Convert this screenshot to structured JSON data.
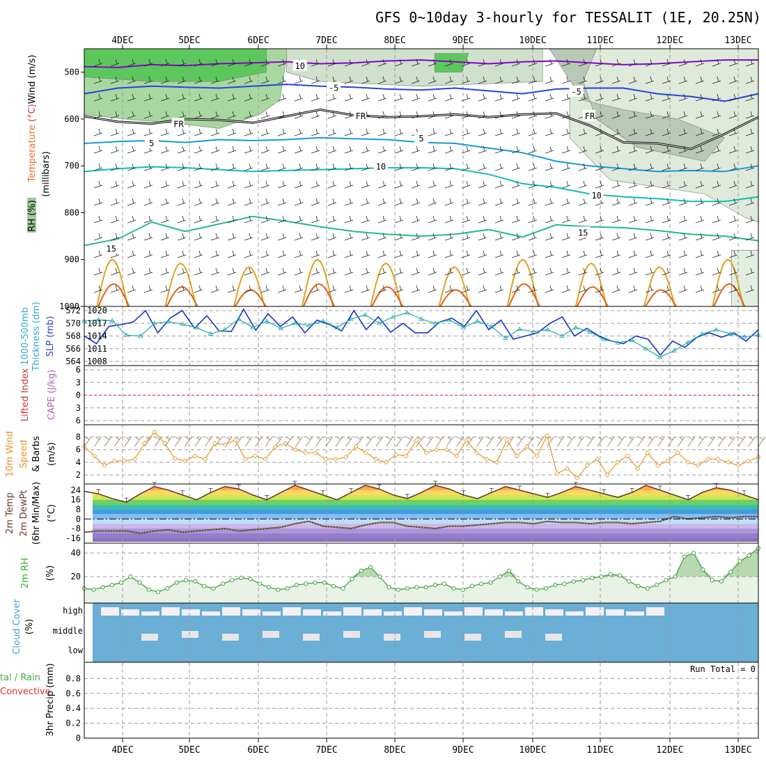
{
  "title": "GFS 0~10day 3-hourly for TESSALIT (1E, 20.25N)",
  "dates": [
    "4DEC",
    "5DEC",
    "6DEC",
    "7DEC",
    "8DEC",
    "9DEC",
    "10DEC",
    "11DEC",
    "12DEC",
    "13DEC"
  ],
  "colors": {
    "rh_light": "#e8f3e6",
    "rh_mid": "#a8d8a0",
    "rh_dark": "#5cc85c",
    "rh_bright": "#00e600",
    "temp_500": "#8800cc",
    "temp_550": "#2244dd",
    "freezing": "#000000",
    "temp_650": "#1199dd",
    "temp_700": "#11bbbb",
    "temp_850": "#22bb88",
    "warm": "#e0a020",
    "hot": "#e06010",
    "thickness": "#1133cc",
    "slp": "#22aaaa",
    "lifted": "#dd2222",
    "wind10m": "#e69520",
    "rh2m": "#339933",
    "cloud": "#6baed6",
    "dewpt": "#5a3a2a"
  },
  "sidebar_labels": {
    "upper_wind": "Wind",
    "upper_wind_unit": "(m/s)",
    "upper_temp": "Temperature",
    "upper_temp_unit": "(°C)",
    "upper_rh": "RH (%)",
    "upper_axis": "(millibars)",
    "thick_label": "1000-500mb",
    "thick_label2": "Thickness (dm)",
    "slp_label": "SLP (mb)",
    "li_label": "Lifted Index",
    "cape_label": "CAPE (J/kg)",
    "wind10_label": "10m Wind",
    "wind10_label2": "Speed",
    "wind10_label3": "& Barbs",
    "wind10_unit": "(m/s)",
    "temp2_label": "2m Temp",
    "temp2_label2": "2m DewPt",
    "temp2_label3": "(6hr Min/Max)",
    "temp2_unit": "(°C)",
    "rh2_label": "2m RH",
    "rh2_unit": "(%)",
    "cloud_label": "Cloud Cover",
    "cloud_unit": "(%)",
    "precip_label": "tal / Rain",
    "precip_label2": "Convective",
    "precip_label3": "3hr Precip (mm)"
  },
  "cloud_levels": [
    "high",
    "middle",
    "low"
  ],
  "precip_run_total": "Run Total = 0",
  "chart_data": [
    {
      "type": "heatmap",
      "name": "upper-air",
      "y_ticks": [
        500,
        600,
        700,
        800,
        900,
        1000
      ],
      "ylim": [
        450,
        1000
      ],
      "contour_labels": [
        {
          "text": "10",
          "t": 0.32,
          "p": 487
        },
        {
          "text": "-5",
          "t": 0.37,
          "p": 534
        },
        {
          "text": "-5",
          "t": 0.73,
          "p": 542
        },
        {
          "text": "FR",
          "t": 0.14,
          "p": 611
        },
        {
          "text": "FR",
          "t": 0.41,
          "p": 594
        },
        {
          "text": "FR",
          "t": 0.75,
          "p": 594
        },
        {
          "text": "5",
          "t": 0.1,
          "p": 652
        },
        {
          "text": "5",
          "t": 0.5,
          "p": 642
        },
        {
          "text": "10",
          "t": 0.44,
          "p": 702
        },
        {
          "text": "10",
          "t": 0.76,
          "p": 764
        },
        {
          "text": "15",
          "t": 0.04,
          "p": 877
        },
        {
          "text": "15",
          "t": 0.74,
          "p": 843
        }
      ],
      "isotherms": [
        {
          "label": "-10",
          "p": [
            488,
            490,
            484,
            486,
            482,
            480,
            478,
            482,
            480,
            476,
            474,
            478,
            482,
            478,
            476,
            480,
            484,
            482,
            478,
            474,
            474
          ]
        },
        {
          "label": "-5",
          "p": [
            546,
            534,
            530,
            532,
            534,
            530,
            526,
            530,
            532,
            536,
            538,
            534,
            540,
            546,
            536,
            534,
            534,
            546,
            552,
            562,
            546
          ]
        },
        {
          "label": "FR",
          "p": [
            594,
            606,
            610,
            600,
            602,
            608,
            594,
            580,
            592,
            596,
            594,
            590,
            596,
            590,
            588,
            614,
            650,
            652,
            664,
            632,
            596
          ]
        },
        {
          "label": "5",
          "p": [
            652,
            648,
            646,
            650,
            644,
            646,
            644,
            640,
            642,
            644,
            650,
            652,
            662,
            672,
            690,
            700,
            706,
            712,
            710,
            712,
            700
          ]
        },
        {
          "label": "10",
          "p": [
            712,
            706,
            702,
            704,
            708,
            712,
            710,
            708,
            706,
            704,
            704,
            706,
            718,
            738,
            746,
            760,
            766,
            770,
            776,
            776,
            766
          ]
        },
        {
          "label": "15",
          "p": [
            870,
            856,
            820,
            840,
            824,
            808,
            818,
            830,
            840,
            846,
            850,
            846,
            836,
            852,
            826,
            830,
            832,
            838,
            846,
            850,
            860
          ]
        }
      ]
    },
    {
      "type": "line",
      "name": "thickness-slp",
      "left_ticks": [
        564,
        566,
        568,
        570,
        572
      ],
      "right_ticks": [
        1008,
        1011,
        1014,
        1017,
        1020
      ],
      "series": [
        {
          "axis": "left",
          "values": [
            568.0,
            566.8,
            569.5,
            569.8,
            570.2,
            572.0,
            568.5,
            570.8,
            572.0,
            569.2,
            571.2,
            568.8,
            568.7,
            572.2,
            568.9,
            571.5,
            569.5,
            571.0,
            568.5,
            570.5,
            569.8,
            568.8,
            572.0,
            569.0,
            571.0,
            568.6,
            570.0,
            568.5,
            568.5,
            570.2,
            570.8,
            569.5,
            572.0,
            569.0,
            570.5,
            567.5,
            568.0,
            568.5,
            570.0,
            571.0,
            568.0,
            569.2,
            568.0,
            567.2,
            566.8,
            568.0,
            567.5,
            565.0,
            567.2,
            566.2,
            567.8,
            568.5,
            567.8,
            568.5,
            567.2,
            569.0
          ]
        },
        {
          "axis": "right",
          "values": [
            1017.5,
            1017.8,
            1017.6,
            1014.2,
            1014.0,
            1017.0,
            1017.4,
            1016.8,
            1016.0,
            1014.5,
            1015.5,
            1018.0,
            1016.0,
            1017.5,
            1015.8,
            1017.0,
            1016.5,
            1017.5,
            1016.0,
            1018.0,
            1019.0,
            1017.0,
            1018.5,
            1019.5,
            1018.0,
            1017.0,
            1017.8,
            1016.0,
            1017.5,
            1016.2,
            1013.5,
            1015.6,
            1015.0,
            1015.5,
            1014.0,
            1016.0,
            1015.0,
            1013.2,
            1012.4,
            1013.0,
            1011.0,
            1009.0,
            1010.5,
            1012.5,
            1014.5,
            1015.5,
            1014.5,
            1013.8,
            1014.2
          ]
        }
      ]
    },
    {
      "type": "line",
      "name": "lifted-cape",
      "left_ticks": [
        -6,
        -3,
        0,
        3,
        6
      ],
      "series": [
        {
          "axis": "left",
          "values": [
            0,
            0
          ]
        }
      ]
    },
    {
      "type": "line",
      "name": "wind10m",
      "left_ticks": [
        2,
        4,
        6,
        8
      ],
      "series": [
        {
          "axis": "left",
          "values": [
            6.5,
            5.0,
            3.5,
            4.2,
            4.2,
            4.5,
            7.0,
            8.8,
            7.0,
            4.6,
            4.2,
            5.0,
            4.5,
            7.0,
            6.8,
            7.5,
            4.5,
            5.0,
            4.5,
            6.5,
            7.0,
            6.0,
            5.5,
            5.5,
            4.5,
            4.5,
            4.8,
            6.5,
            5.5,
            4.5,
            4.0,
            5.2,
            5.0,
            7.5,
            5.5,
            6.0,
            6.0,
            5.0,
            7.5,
            5.5,
            4.5,
            4.0,
            7.5,
            5.0,
            6.5,
            5.0,
            8.2,
            2.2,
            3.0,
            1.5,
            3.5,
            4.5,
            2.0,
            4.0,
            5.0,
            3.0,
            5.5,
            3.5,
            4.2,
            5.5,
            4.0,
            3.5,
            4.5,
            4.5,
            4.0,
            3.5,
            4.2,
            4.8
          ]
        }
      ]
    },
    {
      "type": "area",
      "name": "temp2m",
      "left_ticks": [
        -16,
        -8,
        0,
        8,
        16,
        24
      ],
      "series": [
        {
          "axis": "left",
          "values": [
            23,
            21,
            17,
            14,
            21,
            27,
            24,
            20,
            16,
            22,
            27,
            25,
            20,
            16,
            22,
            28,
            24,
            20,
            16,
            22,
            28,
            25,
            20,
            17,
            22,
            28,
            25,
            20,
            17,
            22,
            27,
            24,
            21,
            18,
            22,
            27,
            24,
            21,
            18,
            22,
            28,
            24,
            20,
            16,
            22,
            26,
            24,
            20,
            16
          ]
        },
        {
          "axis": "left",
          "values": [
            -11,
            -10,
            -10,
            -10,
            -12,
            -10,
            -9,
            -11,
            -10,
            -9,
            -8,
            -10,
            -9,
            -8,
            -7,
            -4,
            -2,
            -6,
            -7,
            -8,
            -5,
            -3,
            -3,
            -6,
            -7,
            -8,
            -6,
            -6,
            -5,
            -4,
            -3,
            -3,
            -4,
            -2,
            -3,
            -3,
            -4,
            -3,
            -3,
            -4,
            -3,
            -2,
            2,
            0,
            1,
            2,
            1,
            2,
            2
          ]
        }
      ]
    },
    {
      "type": "area",
      "name": "rh2m",
      "left_ticks": [
        20,
        40
      ],
      "series": [
        {
          "axis": "left",
          "values": [
            10,
            9,
            11,
            13,
            15,
            20,
            15,
            9,
            7,
            10,
            15,
            17,
            16,
            12,
            10,
            14,
            17,
            19,
            18,
            14,
            11,
            9,
            10,
            13,
            14,
            15,
            15,
            12,
            10,
            18,
            25,
            28,
            20,
            11,
            9,
            10,
            11,
            11,
            13,
            14,
            10,
            9,
            12,
            14,
            15,
            20,
            25,
            16,
            11,
            9,
            10,
            13,
            14,
            16,
            17,
            19,
            20,
            22,
            21,
            16,
            12,
            10,
            13,
            17,
            20,
            37,
            40,
            26,
            17,
            16,
            24,
            33,
            38,
            44
          ]
        }
      ]
    },
    {
      "type": "heatmap",
      "name": "cloud",
      "categories": [
        "high",
        "middle",
        "low"
      ]
    },
    {
      "type": "bar",
      "name": "precip",
      "left_ticks": [
        0,
        0.2,
        0.4,
        0.6,
        0.8
      ],
      "ylim": [
        0,
        1
      ],
      "values": []
    }
  ]
}
